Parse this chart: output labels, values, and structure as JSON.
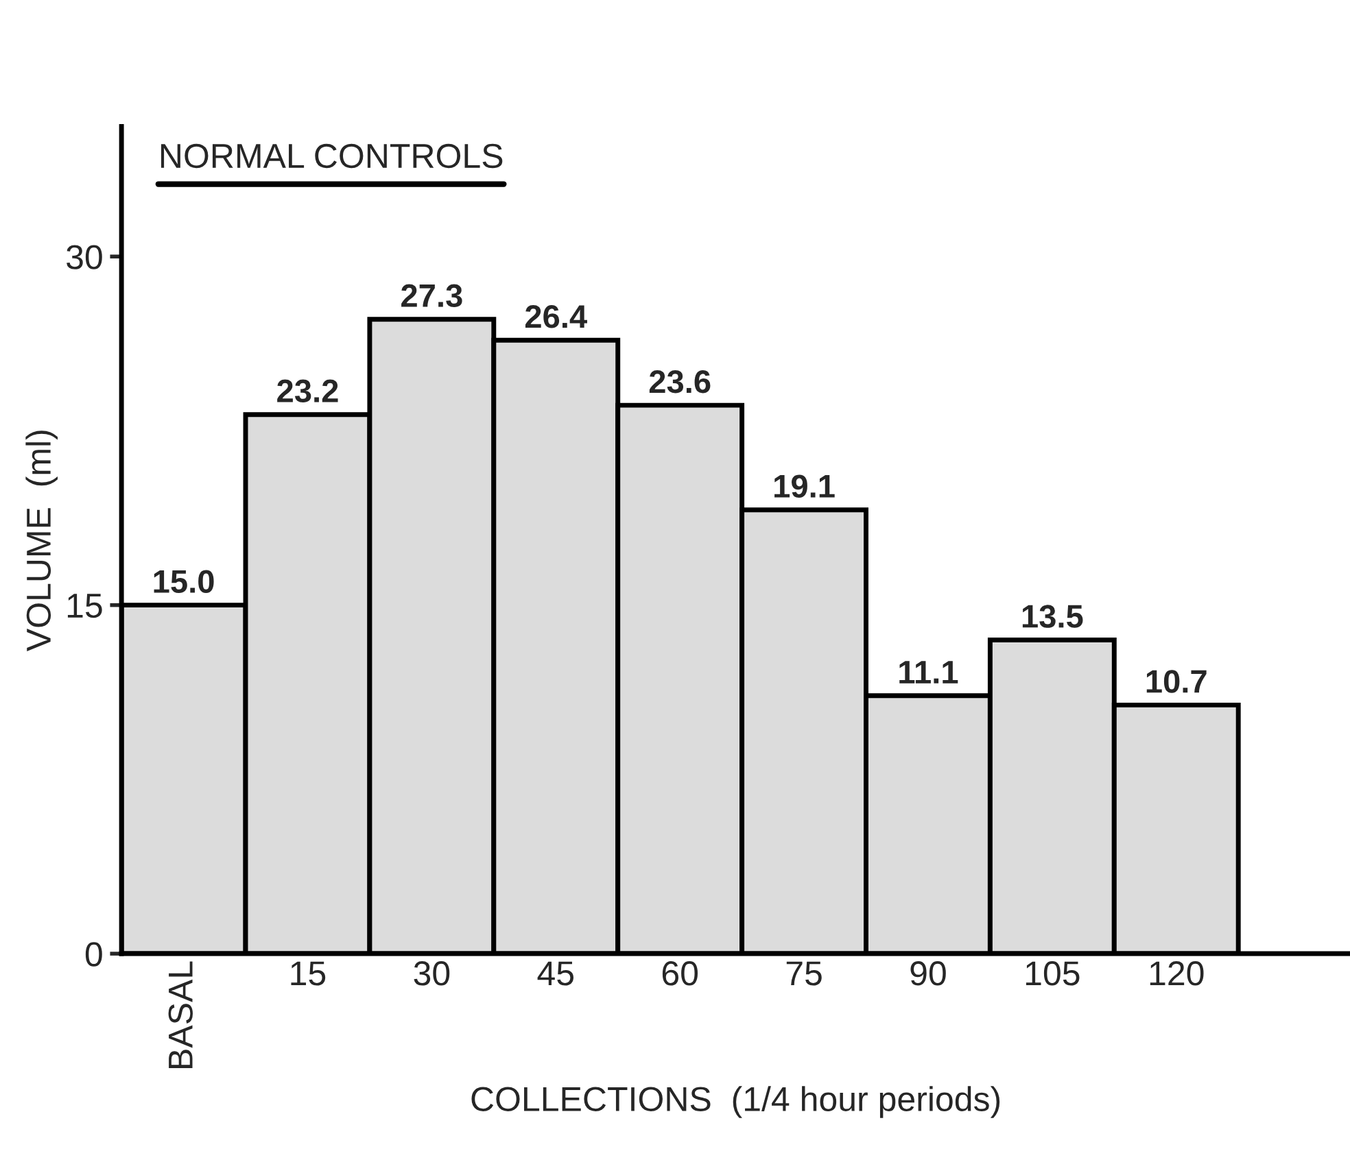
{
  "chart_data": {
    "type": "bar",
    "title": "NORMAL CONTROLS",
    "xlabel": "COLLECTIONS  (1/4 hour periods)",
    "ylabel": "VOLUME  (ml)",
    "categories": [
      "BASAL",
      "15",
      "30",
      "45",
      "60",
      "75",
      "90",
      "105",
      "120"
    ],
    "values": [
      15.0,
      23.2,
      27.3,
      26.4,
      23.6,
      19.1,
      11.1,
      13.5,
      10.7
    ],
    "value_labels": [
      "15.0",
      "23.2",
      "27.3",
      "26.4",
      "23.6",
      "19.1",
      "11.1",
      "13.5",
      "10.7"
    ],
    "color": "#dcdcdc",
    "ylim": [
      0,
      35.6
    ],
    "yticks": [
      0,
      15,
      30
    ],
    "grid": false,
    "legend": false
  }
}
